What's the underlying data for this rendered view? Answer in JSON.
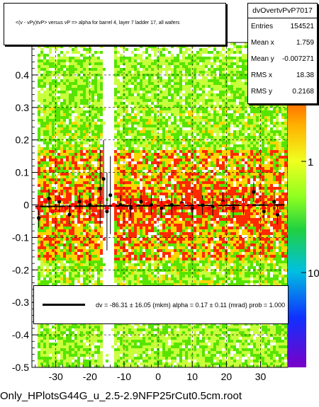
{
  "title": "<(v - vPy)tvP> versus   vP => alpha for barrel 4, layer 7 ladder 17, all wafers",
  "stats": {
    "name": "dvOvertvPvP7017",
    "rows": [
      {
        "key": "Entries",
        "value": "154521"
      },
      {
        "key": "Mean x",
        "value": "1.759"
      },
      {
        "key": "Mean y",
        "value": "-0.007271"
      },
      {
        "key": "RMS x",
        "value": "18.38"
      },
      {
        "key": "RMS y",
        "value": "0.2168"
      }
    ]
  },
  "fit": {
    "text": "dv =  -86.31 ±  16.05 (mkm) alpha =    0.17 ±  0.11 (mrad) prob = 1.000"
  },
  "footer": "Only_HPlotsG44G_u_2.5-2.9NFP25rCut0.5cm.root",
  "colors": {
    "heat_low": "#c8ff3c",
    "heat_mid": "#58e400",
    "heat_high": "#ff2a00",
    "heat_top": "#ffd400",
    "profile_red": "#ff0000",
    "profile_black": "#000000",
    "fit_line": "#000000"
  },
  "chart_data": {
    "type": "heatmap",
    "title": "<(v - vPy)tvP> versus   vP => alpha for barrel 4, layer 7 ladder 17, all wafers",
    "xlim": [
      -37,
      38
    ],
    "ylim": [
      -0.5,
      0.5
    ],
    "x_ticks": [
      -30,
      -20,
      -10,
      0,
      10,
      20,
      30
    ],
    "y_ticks": [
      -0.5,
      -0.4,
      -0.3,
      -0.2,
      -0.1,
      0,
      0.1,
      0.2,
      0.3,
      0.4
    ],
    "z_scale": "log",
    "z_tick_labels": [
      "1",
      "10"
    ],
    "grid": true,
    "profile_red": {
      "x": [
        -35,
        -33,
        -31,
        -29,
        -27,
        -25,
        -23,
        -21,
        -19,
        -17,
        -15,
        -13,
        -11,
        -9,
        -7,
        -5,
        -3,
        -1,
        1,
        3,
        5,
        7,
        9,
        11,
        13,
        15,
        17,
        19,
        21,
        23,
        25,
        27,
        29,
        31,
        33,
        35
      ],
      "y": [
        -0.01,
        0.01,
        -0.02,
        0.02,
        -0.01,
        0.0,
        -0.02,
        0.01,
        -0.03,
        0.02,
        -0.01,
        0.0,
        -0.01,
        0.01,
        0.0,
        -0.01,
        0.005,
        -0.005,
        0.0,
        0.01,
        -0.01,
        0.0,
        0.005,
        -0.005,
        0.01,
        -0.01,
        0.0,
        0.005,
        -0.01,
        0.01,
        0.0,
        -0.005,
        0.01,
        -0.01,
        0.0,
        -0.02
      ]
    },
    "profile_black": {
      "x": [
        -35,
        -32,
        -29,
        -26,
        -23,
        -20,
        -17,
        -16,
        -15,
        -14,
        -11,
        -8,
        -5,
        -2,
        1,
        4,
        7,
        10,
        13,
        16,
        19,
        22,
        25,
        28,
        31,
        34,
        35
      ],
      "y": [
        -0.04,
        0.02,
        0.01,
        -0.03,
        0.01,
        0.0,
        0.05,
        0.08,
        -0.02,
        0.03,
        0.0,
        -0.01,
        0.01,
        0.0,
        -0.01,
        0.0,
        0.005,
        -0.01,
        0.0,
        -0.005,
        0.01,
        -0.01,
        0.0,
        0.04,
        -0.02,
        0.01,
        -0.03
      ]
    },
    "fit_line": {
      "x": [
        -36,
        37
      ],
      "y": [
        -0.005,
        0.0
      ]
    }
  }
}
